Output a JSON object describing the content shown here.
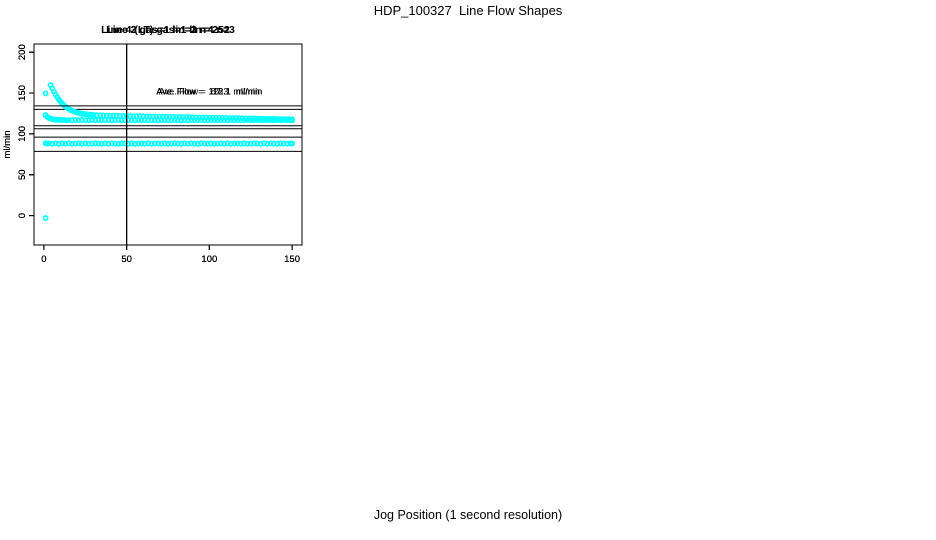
{
  "chart_data": {
    "type": "scatter",
    "title": "HDP_100327  Line Flow Shapes",
    "xlabel": "Jog Position (1 second resolution)",
    "ylabel": "ml/min",
    "point_color": "#00ffff",
    "axis_color": "#000000",
    "background": "#ffffff",
    "grid": false,
    "xlim": [
      -6,
      156
    ],
    "ylim": [
      -36,
      210
    ],
    "x_ticks": [
      0,
      50,
      100,
      150
    ],
    "y_ticks": [
      0,
      50,
      100,
      150,
      200
    ],
    "vline_x": 50,
    "panels": [
      {
        "title": "Line 2 gas=1 lin=2 n=252",
        "n": 252,
        "ave_flow": 118.1,
        "annotation": "Ave. Flow =  118.1  ml/min",
        "annotation_xy": [
          100,
          148
        ],
        "hlines": [
          129.9,
          106.3
        ],
        "points": [
          [
            1,
            122.9
          ],
          [
            2,
            120.9
          ],
          [
            3,
            119.6
          ],
          [
            4,
            118.7
          ],
          [
            5,
            118.1
          ],
          [
            6,
            117.7
          ],
          [
            7,
            117.4
          ],
          [
            8,
            117.3
          ],
          [
            9,
            117.1
          ],
          [
            10,
            117.1
          ],
          [
            11,
            117.0
          ],
          [
            12,
            117.0
          ],
          [
            13,
            116.9
          ],
          [
            14,
            116.9
          ],
          [
            15,
            116.9
          ],
          [
            17,
            116.8
          ],
          [
            19,
            117.0
          ],
          [
            21,
            116.7
          ],
          [
            23,
            117.1
          ],
          [
            25,
            116.9
          ],
          [
            27,
            116.6
          ],
          [
            29,
            117.0
          ],
          [
            31,
            116.8
          ],
          [
            33,
            117.1
          ],
          [
            35,
            116.7
          ],
          [
            37,
            116.9
          ],
          [
            39,
            117.0
          ],
          [
            41,
            116.6
          ],
          [
            43,
            116.9
          ],
          [
            45,
            117.1
          ],
          [
            47,
            116.8
          ],
          [
            49,
            116.7
          ],
          [
            51,
            117.0
          ],
          [
            53,
            116.9
          ],
          [
            55,
            116.6
          ],
          [
            57,
            117.1
          ],
          [
            59,
            116.8
          ],
          [
            61,
            117.0
          ],
          [
            63,
            116.7
          ],
          [
            65,
            116.9
          ],
          [
            67,
            117.1
          ],
          [
            69,
            116.6
          ],
          [
            71,
            116.9
          ],
          [
            73,
            117.0
          ],
          [
            75,
            116.8
          ],
          [
            77,
            116.7
          ],
          [
            79,
            117.1
          ],
          [
            81,
            116.9
          ],
          [
            83,
            116.6
          ],
          [
            85,
            117.0
          ],
          [
            87,
            116.8
          ],
          [
            89,
            117.1
          ],
          [
            91,
            116.7
          ],
          [
            93,
            116.9
          ],
          [
            95,
            117.0
          ],
          [
            97,
            116.6
          ],
          [
            99,
            116.9
          ],
          [
            101,
            117.1
          ],
          [
            103,
            116.8
          ],
          [
            105,
            116.7
          ],
          [
            107,
            117.0
          ],
          [
            109,
            116.9
          ],
          [
            111,
            116.6
          ],
          [
            113,
            117.1
          ],
          [
            115,
            116.8
          ],
          [
            117,
            117.0
          ],
          [
            119,
            116.7
          ],
          [
            121,
            116.9
          ],
          [
            123,
            117.1
          ],
          [
            125,
            116.6
          ],
          [
            127,
            116.9
          ],
          [
            129,
            117.0
          ],
          [
            131,
            116.8
          ],
          [
            133,
            116.7
          ],
          [
            135,
            117.1
          ],
          [
            137,
            116.9
          ],
          [
            139,
            116.6
          ],
          [
            141,
            117.0
          ],
          [
            143,
            116.8
          ],
          [
            145,
            117.1
          ],
          [
            147,
            116.7
          ],
          [
            149,
            116.9
          ],
          [
            150,
            116.8
          ]
        ]
      },
      {
        "title": "Line 3 gas=1 lin=3 n=252",
        "n": 252,
        "ave_flow": 87.3,
        "annotation": "Ave. Flow =  87.3  ml/min",
        "annotation_xy": [
          100,
          148
        ],
        "hlines": [
          96.0,
          78.6
        ],
        "points": [
          [
            1,
            149.5
          ],
          [
            1,
            88.5
          ],
          [
            2,
            88.1
          ],
          [
            3,
            88.4
          ],
          [
            5,
            88.0
          ],
          [
            7,
            88.4
          ],
          [
            9,
            87.9
          ],
          [
            11,
            88.3
          ],
          [
            13,
            88.1
          ],
          [
            15,
            88.5
          ],
          [
            17,
            87.8
          ],
          [
            19,
            88.2
          ],
          [
            21,
            88.4
          ],
          [
            23,
            88.0
          ],
          [
            25,
            88.3
          ],
          [
            27,
            87.9
          ],
          [
            29,
            88.1
          ],
          [
            31,
            88.5
          ],
          [
            33,
            88.2
          ],
          [
            35,
            87.8
          ],
          [
            37,
            88.4
          ],
          [
            39,
            88.0
          ],
          [
            41,
            88.3
          ],
          [
            43,
            88.1
          ],
          [
            45,
            87.9
          ],
          [
            47,
            88.5
          ],
          [
            49,
            88.2
          ],
          [
            51,
            88.0
          ],
          [
            53,
            88.4
          ],
          [
            55,
            87.8
          ],
          [
            57,
            88.1
          ],
          [
            59,
            88.3
          ],
          [
            61,
            88.0
          ],
          [
            63,
            88.5
          ],
          [
            65,
            87.9
          ],
          [
            67,
            88.2
          ],
          [
            69,
            88.4
          ],
          [
            71,
            88.0
          ],
          [
            73,
            88.3
          ],
          [
            75,
            87.8
          ],
          [
            77,
            88.1
          ],
          [
            79,
            88.5
          ],
          [
            81,
            88.2
          ],
          [
            83,
            87.9
          ],
          [
            85,
            88.4
          ],
          [
            87,
            88.0
          ],
          [
            89,
            88.3
          ],
          [
            91,
            88.1
          ],
          [
            93,
            87.8
          ],
          [
            95,
            88.5
          ],
          [
            97,
            88.2
          ],
          [
            99,
            88.0
          ],
          [
            101,
            88.4
          ],
          [
            103,
            87.9
          ],
          [
            105,
            88.1
          ],
          [
            107,
            88.3
          ],
          [
            109,
            88.0
          ],
          [
            111,
            88.5
          ],
          [
            113,
            87.8
          ],
          [
            115,
            88.2
          ],
          [
            117,
            88.4
          ],
          [
            119,
            88.0
          ],
          [
            121,
            88.3
          ],
          [
            123,
            87.9
          ],
          [
            125,
            88.1
          ],
          [
            127,
            88.5
          ],
          [
            129,
            88.2
          ],
          [
            131,
            87.8
          ],
          [
            133,
            88.4
          ],
          [
            135,
            88.0
          ],
          [
            137,
            88.3
          ],
          [
            139,
            88.1
          ],
          [
            141,
            87.9
          ],
          [
            143,
            88.5
          ],
          [
            145,
            88.2
          ],
          [
            147,
            88.0
          ],
          [
            149,
            88.4
          ],
          [
            150,
            88.1
          ]
        ]
      },
      {
        "title": "Line 4 (LT) gas=1 lin=4 n=3",
        "n": 3,
        "ave_flow": 122.1,
        "annotation": "Ave. Flow =  122.1  ml/min",
        "annotation_xy": [
          100,
          148
        ],
        "hlines": [
          134.3,
          109.9
        ],
        "points": [
          [
            1,
            -3.0
          ],
          [
            4,
            159.8
          ],
          [
            5,
            155.6
          ],
          [
            6,
            151.8
          ],
          [
            7,
            148.2
          ],
          [
            8,
            145.0
          ],
          [
            9,
            142.1
          ],
          [
            10,
            139.5
          ],
          [
            11,
            137.2
          ],
          [
            12,
            135.2
          ],
          [
            13,
            133.4
          ],
          [
            14,
            131.9
          ],
          [
            15,
            130.5
          ],
          [
            16,
            129.4
          ],
          [
            17,
            128.4
          ],
          [
            18,
            127.5
          ],
          [
            19,
            126.8
          ],
          [
            20,
            126.2
          ],
          [
            21,
            125.6
          ],
          [
            22,
            125.2
          ],
          [
            23,
            124.8
          ],
          [
            24,
            124.4
          ],
          [
            25,
            124.1
          ],
          [
            26,
            123.9
          ],
          [
            27,
            123.6
          ],
          [
            28,
            123.5
          ],
          [
            29,
            123.3
          ],
          [
            30,
            123.1
          ],
          [
            32,
            122.9
          ],
          [
            34,
            122.7
          ],
          [
            36,
            122.6
          ],
          [
            38,
            122.4
          ],
          [
            40,
            122.3
          ],
          [
            42,
            122.2
          ],
          [
            44,
            122.1
          ],
          [
            46,
            122.0
          ],
          [
            48,
            122.0
          ],
          [
            50,
            121.9
          ],
          [
            52,
            121.8
          ],
          [
            54,
            121.7
          ],
          [
            56,
            121.6
          ],
          [
            58,
            121.5
          ],
          [
            60,
            121.5
          ],
          [
            62,
            121.4
          ],
          [
            64,
            121.3
          ],
          [
            66,
            121.2
          ],
          [
            68,
            121.2
          ],
          [
            70,
            121.1
          ],
          [
            72,
            121.0
          ],
          [
            74,
            120.9
          ],
          [
            76,
            120.9
          ],
          [
            78,
            120.8
          ],
          [
            80,
            120.7
          ],
          [
            82,
            120.6
          ],
          [
            84,
            120.5
          ],
          [
            86,
            120.5
          ],
          [
            88,
            120.4
          ],
          [
            90,
            120.3
          ],
          [
            92,
            120.2
          ],
          [
            94,
            120.1
          ],
          [
            96,
            120.1
          ],
          [
            98,
            120.0
          ],
          [
            100,
            119.9
          ],
          [
            102,
            119.8
          ],
          [
            104,
            119.7
          ],
          [
            106,
            119.7
          ],
          [
            108,
            119.6
          ],
          [
            110,
            119.5
          ],
          [
            112,
            119.4
          ],
          [
            114,
            119.3
          ],
          [
            116,
            119.3
          ],
          [
            118,
            119.2
          ],
          [
            120,
            119.1
          ],
          [
            122,
            119.0
          ],
          [
            124,
            118.9
          ],
          [
            126,
            118.9
          ],
          [
            128,
            118.8
          ],
          [
            130,
            118.7
          ],
          [
            132,
            118.6
          ],
          [
            134,
            118.5
          ],
          [
            136,
            118.5
          ],
          [
            138,
            118.4
          ],
          [
            140,
            118.3
          ],
          [
            142,
            118.2
          ],
          [
            144,
            118.1
          ],
          [
            146,
            118.1
          ],
          [
            148,
            118.0
          ],
          [
            150,
            117.9
          ]
        ]
      }
    ]
  }
}
